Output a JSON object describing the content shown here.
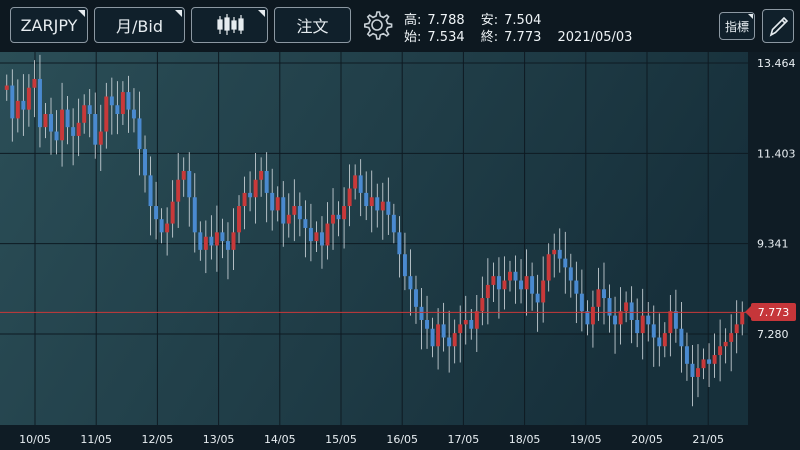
{
  "toolbar": {
    "symbol": "ZARJPY",
    "period": "月/Bid",
    "order": "注文",
    "indicator": "指標",
    "chart_type_icon": "candlestick-icon",
    "settings_icon": "gear-icon",
    "draw_icon": "pencil-icon"
  },
  "ohlc": {
    "high_label": "高:",
    "high": "7.788",
    "low_label": "安:",
    "low": "7.504",
    "open_label": "始:",
    "open": "7.534",
    "close_label": "終:",
    "close": "7.773",
    "date": "2021/05/03"
  },
  "colors": {
    "up": "#c8393a",
    "down": "#4a8ad0",
    "current_line": "#c8393a"
  },
  "current_price": "7.773",
  "chart_data": {
    "type": "candlestick",
    "y_ticks": [
      "13.464",
      "11.403",
      "9.341",
      "7.280"
    ],
    "y_tick_values": [
      13.464,
      11.403,
      9.341,
      7.28
    ],
    "x_ticks": [
      "10/05",
      "11/05",
      "12/05",
      "13/05",
      "14/05",
      "15/05",
      "16/05",
      "17/05",
      "18/05",
      "19/05",
      "20/05",
      "21/05"
    ],
    "current_price": 7.773,
    "grid": true,
    "close_series": [
      12.95,
      12.2,
      12.6,
      12.4,
      12.9,
      13.1,
      12.0,
      12.3,
      11.9,
      11.7,
      12.4,
      12.0,
      11.8,
      12.1,
      12.5,
      12.3,
      11.6,
      11.9,
      12.7,
      12.5,
      12.3,
      12.8,
      12.4,
      12.2,
      11.5,
      10.9,
      10.2,
      9.9,
      9.6,
      9.8,
      10.3,
      10.8,
      11.0,
      10.4,
      9.6,
      9.2,
      9.5,
      9.3,
      9.6,
      9.4,
      9.2,
      9.6,
      10.2,
      10.5,
      10.4,
      10.8,
      11.0,
      10.5,
      10.1,
      10.4,
      9.8,
      10.0,
      10.2,
      9.9,
      9.7,
      9.4,
      9.6,
      9.3,
      9.8,
      10.0,
      9.9,
      10.2,
      10.6,
      10.9,
      10.5,
      10.2,
      10.4,
      10.1,
      10.3,
      10.0,
      9.6,
      9.1,
      8.6,
      8.3,
      7.9,
      7.6,
      7.4,
      7.0,
      7.5,
      7.2,
      7.0,
      7.3,
      7.5,
      7.6,
      7.4,
      7.8,
      8.1,
      8.4,
      8.6,
      8.3,
      8.5,
      8.7,
      8.5,
      8.3,
      8.6,
      8.2,
      8.0,
      8.5,
      9.1,
      9.2,
      9.0,
      8.8,
      8.5,
      8.2,
      7.8,
      7.5,
      7.9,
      8.3,
      8.1,
      7.7,
      7.5,
      7.8,
      8.0,
      7.6,
      7.3,
      7.7,
      7.5,
      7.2,
      7.0,
      7.3,
      7.8,
      7.4,
      7.0,
      6.6,
      6.3,
      6.5,
      6.7,
      6.6,
      6.8,
      7.0,
      7.1,
      7.3,
      7.5,
      7.773
    ]
  }
}
